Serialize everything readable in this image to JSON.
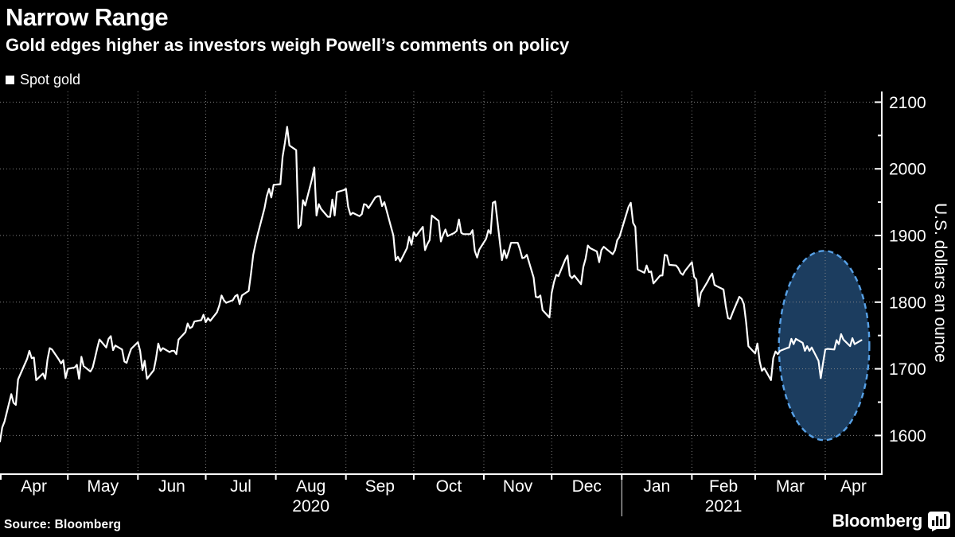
{
  "header": {
    "title": "Narrow Range",
    "subtitle": "Gold edges higher as investors weigh Powell’s comments on policy"
  },
  "legend": {
    "label": "Spot gold",
    "swatch_color": "#ffffff"
  },
  "source": {
    "text": "Source: Bloomberg"
  },
  "branding": {
    "logo_text": "Bloomberg",
    "logo_icon": "bar-chart-bubble-icon"
  },
  "colors": {
    "background": "#000000",
    "line": "#ffffff",
    "grid": "#8c8c8c",
    "axis": "#ffffff",
    "text": "#ffffff",
    "highlight_fill": "#1d4063",
    "highlight_border": "#57a0e5"
  },
  "chart_data": {
    "type": "line",
    "title": "Narrow Range",
    "xlabel": "",
    "ylabel": "U.S. dollars an ounce",
    "x_axis": {
      "start_date": "2020-04-01",
      "domain_days": [
        0,
        390
      ],
      "month_labels": [
        "Apr",
        "May",
        "Jun",
        "Jul",
        "Aug",
        "Sep",
        "Oct",
        "Nov",
        "Dec",
        "Jan",
        "Feb",
        "Mar",
        "Apr"
      ],
      "month_boundaries": [
        0,
        30,
        61,
        91,
        122,
        153,
        183,
        214,
        244,
        275,
        306,
        334,
        365
      ],
      "year_labels": [
        {
          "label": "2020",
          "month_index": 4
        },
        {
          "label": "2021",
          "month_index": 10
        }
      ],
      "year_divider_day": 275
    },
    "y_axis": {
      "label": "U.S. dollars an ounce",
      "ticks": [
        1600,
        1700,
        1800,
        1900,
        2000,
        2100
      ],
      "minor_ticks": [
        1650,
        1750,
        1850,
        1950,
        2050
      ],
      "range": [
        1542,
        2116
      ]
    },
    "grid": {
      "horizontal": true,
      "vertical": true,
      "style": "dotted"
    },
    "highlight": {
      "shape": "ellipse",
      "center_day": 364.5,
      "center_value": 1735,
      "radius_days": 20,
      "radius_value": 142
    },
    "series": [
      {
        "name": "Spot gold",
        "color": "#ffffff",
        "points": [
          [
            0,
            1591
          ],
          [
            1,
            1612
          ],
          [
            2,
            1621
          ],
          [
            5,
            1662
          ],
          [
            6,
            1649
          ],
          [
            7,
            1646
          ],
          [
            8,
            1684
          ],
          [
            12,
            1715
          ],
          [
            13,
            1727
          ],
          [
            14,
            1716
          ],
          [
            15,
            1717
          ],
          [
            16,
            1683
          ],
          [
            19,
            1693
          ],
          [
            20,
            1685
          ],
          [
            21,
            1714
          ],
          [
            22,
            1731
          ],
          [
            23,
            1729
          ],
          [
            26,
            1714
          ],
          [
            27,
            1708
          ],
          [
            28,
            1713
          ],
          [
            29,
            1686
          ],
          [
            30,
            1700
          ],
          [
            33,
            1702
          ],
          [
            34,
            1706
          ],
          [
            35,
            1685
          ],
          [
            36,
            1718
          ],
          [
            37,
            1704
          ],
          [
            40,
            1696
          ],
          [
            41,
            1702
          ],
          [
            42,
            1716
          ],
          [
            43,
            1731
          ],
          [
            44,
            1744
          ],
          [
            47,
            1732
          ],
          [
            48,
            1745
          ],
          [
            49,
            1749
          ],
          [
            50,
            1728
          ],
          [
            51,
            1735
          ],
          [
            54,
            1729
          ],
          [
            55,
            1711
          ],
          [
            56,
            1709
          ],
          [
            57,
            1720
          ],
          [
            58,
            1730
          ],
          [
            61,
            1740
          ],
          [
            62,
            1727
          ],
          [
            63,
            1698
          ],
          [
            64,
            1712
          ],
          [
            65,
            1685
          ],
          [
            68,
            1698
          ],
          [
            69,
            1715
          ],
          [
            70,
            1738
          ],
          [
            71,
            1727
          ],
          [
            72,
            1731
          ],
          [
            75,
            1725
          ],
          [
            76,
            1727
          ],
          [
            77,
            1727
          ],
          [
            78,
            1722
          ],
          [
            79,
            1744
          ],
          [
            82,
            1755
          ],
          [
            83,
            1768
          ],
          [
            84,
            1761
          ],
          [
            85,
            1763
          ],
          [
            86,
            1771
          ],
          [
            89,
            1773
          ],
          [
            90,
            1781
          ],
          [
            91,
            1770
          ],
          [
            92,
            1776
          ],
          [
            93,
            1772
          ],
          [
            96,
            1785
          ],
          [
            97,
            1795
          ],
          [
            98,
            1810
          ],
          [
            99,
            1803
          ],
          [
            100,
            1799
          ],
          [
            103,
            1803
          ],
          [
            104,
            1809
          ],
          [
            105,
            1811
          ],
          [
            106,
            1797
          ],
          [
            107,
            1810
          ],
          [
            110,
            1817
          ],
          [
            111,
            1843
          ],
          [
            112,
            1871
          ],
          [
            113,
            1887
          ],
          [
            114,
            1902
          ],
          [
            117,
            1941
          ],
          [
            118,
            1959
          ],
          [
            119,
            1970
          ],
          [
            120,
            1957
          ],
          [
            121,
            1976
          ],
          [
            124,
            1977
          ],
          [
            125,
            2018
          ],
          [
            126,
            2039
          ],
          [
            127,
            2063
          ],
          [
            128,
            2035
          ],
          [
            131,
            2028
          ],
          [
            132,
            1911
          ],
          [
            133,
            1916
          ],
          [
            134,
            1953
          ],
          [
            135,
            1945
          ],
          [
            138,
            1985
          ],
          [
            139,
            2002
          ],
          [
            140,
            1930
          ],
          [
            141,
            1947
          ],
          [
            142,
            1940
          ],
          [
            145,
            1928
          ],
          [
            146,
            1928
          ],
          [
            147,
            1954
          ],
          [
            148,
            1930
          ],
          [
            149,
            1965
          ],
          [
            152,
            1968
          ],
          [
            153,
            1970
          ],
          [
            154,
            1943
          ],
          [
            155,
            1931
          ],
          [
            156,
            1934
          ],
          [
            159,
            1929
          ],
          [
            160,
            1932
          ],
          [
            161,
            1947
          ],
          [
            162,
            1946
          ],
          [
            163,
            1941
          ],
          [
            166,
            1957
          ],
          [
            167,
            1959
          ],
          [
            168,
            1959
          ],
          [
            169,
            1944
          ],
          [
            170,
            1950
          ],
          [
            173,
            1912
          ],
          [
            174,
            1900
          ],
          [
            175,
            1863
          ],
          [
            176,
            1868
          ],
          [
            177,
            1861
          ],
          [
            180,
            1881
          ],
          [
            181,
            1898
          ],
          [
            182,
            1886
          ],
          [
            183,
            1905
          ],
          [
            184,
            1899
          ],
          [
            187,
            1913
          ],
          [
            188,
            1878
          ],
          [
            189,
            1887
          ],
          [
            190,
            1893
          ],
          [
            191,
            1930
          ],
          [
            194,
            1922
          ],
          [
            195,
            1891
          ],
          [
            196,
            1901
          ],
          [
            197,
            1909
          ],
          [
            198,
            1899
          ],
          [
            201,
            1904
          ],
          [
            202,
            1907
          ],
          [
            203,
            1924
          ],
          [
            204,
            1904
          ],
          [
            205,
            1902
          ],
          [
            208,
            1902
          ],
          [
            209,
            1908
          ],
          [
            210,
            1877
          ],
          [
            211,
            1867
          ],
          [
            212,
            1879
          ],
          [
            215,
            1895
          ],
          [
            216,
            1908
          ],
          [
            217,
            1903
          ],
          [
            218,
            1949
          ],
          [
            219,
            1951
          ],
          [
            222,
            1863
          ],
          [
            223,
            1878
          ],
          [
            224,
            1866
          ],
          [
            225,
            1876
          ],
          [
            226,
            1889
          ],
          [
            229,
            1889
          ],
          [
            230,
            1879
          ],
          [
            231,
            1866
          ],
          [
            232,
            1867
          ],
          [
            233,
            1871
          ],
          [
            236,
            1837
          ],
          [
            237,
            1808
          ],
          [
            238,
            1807
          ],
          [
            239,
            1810
          ],
          [
            240,
            1788
          ],
          [
            243,
            1777
          ],
          [
            244,
            1814
          ],
          [
            245,
            1830
          ],
          [
            246,
            1841
          ],
          [
            247,
            1839
          ],
          [
            250,
            1864
          ],
          [
            251,
            1870
          ],
          [
            252,
            1840
          ],
          [
            253,
            1836
          ],
          [
            254,
            1840
          ],
          [
            257,
            1827
          ],
          [
            258,
            1853
          ],
          [
            259,
            1865
          ],
          [
            260,
            1885
          ],
          [
            261,
            1881
          ],
          [
            264,
            1876
          ],
          [
            265,
            1860
          ],
          [
            266,
            1878
          ],
          [
            267,
            1883
          ],
          [
            271,
            1872
          ],
          [
            272,
            1878
          ],
          [
            273,
            1893
          ],
          [
            274,
            1898
          ],
          [
            278,
            1943
          ],
          [
            279,
            1949
          ],
          [
            280,
            1919
          ],
          [
            281,
            1913
          ],
          [
            282,
            1849
          ],
          [
            285,
            1844
          ],
          [
            286,
            1855
          ],
          [
            287,
            1845
          ],
          [
            288,
            1846
          ],
          [
            289,
            1828
          ],
          [
            292,
            1840
          ],
          [
            293,
            1840
          ],
          [
            294,
            1871
          ],
          [
            295,
            1870
          ],
          [
            296,
            1856
          ],
          [
            299,
            1855
          ],
          [
            300,
            1851
          ],
          [
            301,
            1844
          ],
          [
            302,
            1841
          ],
          [
            303,
            1847
          ],
          [
            306,
            1860
          ],
          [
            307,
            1838
          ],
          [
            308,
            1834
          ],
          [
            309,
            1794
          ],
          [
            310,
            1814
          ],
          [
            313,
            1831
          ],
          [
            314,
            1838
          ],
          [
            315,
            1843
          ],
          [
            316,
            1826
          ],
          [
            317,
            1824
          ],
          [
            320,
            1819
          ],
          [
            321,
            1794
          ],
          [
            322,
            1776
          ],
          [
            323,
            1775
          ],
          [
            324,
            1784
          ],
          [
            327,
            1808
          ],
          [
            328,
            1805
          ],
          [
            329,
            1797
          ],
          [
            330,
            1770
          ],
          [
            331,
            1734
          ],
          [
            334,
            1723
          ],
          [
            335,
            1738
          ],
          [
            336,
            1711
          ],
          [
            337,
            1697
          ],
          [
            338,
            1701
          ],
          [
            341,
            1683
          ],
          [
            342,
            1716
          ],
          [
            343,
            1726
          ],
          [
            344,
            1722
          ],
          [
            345,
            1727
          ],
          [
            348,
            1731
          ],
          [
            349,
            1732
          ],
          [
            350,
            1745
          ],
          [
            351,
            1737
          ],
          [
            352,
            1745
          ],
          [
            355,
            1739
          ],
          [
            356,
            1727
          ],
          [
            357,
            1734
          ],
          [
            358,
            1727
          ],
          [
            359,
            1732
          ],
          [
            362,
            1712
          ],
          [
            363,
            1686
          ],
          [
            364,
            1708
          ],
          [
            365,
            1729
          ],
          [
            366,
            1730
          ],
          [
            369,
            1729
          ],
          [
            370,
            1743
          ],
          [
            371,
            1737
          ],
          [
            372,
            1752
          ],
          [
            373,
            1744
          ],
          [
            376,
            1734
          ],
          [
            377,
            1746
          ],
          [
            378,
            1737
          ],
          [
            381,
            1743
          ]
        ]
      }
    ]
  }
}
